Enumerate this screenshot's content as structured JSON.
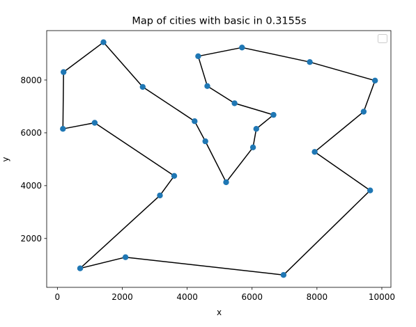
{
  "chart_data": {
    "type": "scatter",
    "title": "Map of cities with basic in 0.3155s",
    "xlabel": "x",
    "ylabel": "y",
    "xlim": [
      -330,
      10280
    ],
    "ylim": [
      150,
      9870
    ],
    "xticks": [
      0,
      2000,
      4000,
      6000,
      8000,
      10000
    ],
    "yticks": [
      2000,
      4000,
      6000,
      8000
    ],
    "grid": false,
    "legend": {
      "placement": "top-right",
      "entries": []
    },
    "colors": {
      "point": "#1f77b4",
      "line": "#000000",
      "axes": "#000000"
    },
    "series": [
      {
        "type": "scatter",
        "points": [
          {
            "x": 1420,
            "y": 9430
          },
          {
            "x": 190,
            "y": 8300
          },
          {
            "x": 170,
            "y": 6150
          },
          {
            "x": 1150,
            "y": 6380
          },
          {
            "x": 3600,
            "y": 4370
          },
          {
            "x": 3160,
            "y": 3630
          },
          {
            "x": 700,
            "y": 870
          },
          {
            "x": 2100,
            "y": 1290
          },
          {
            "x": 6970,
            "y": 620
          },
          {
            "x": 9640,
            "y": 3820
          },
          {
            "x": 7930,
            "y": 5280
          },
          {
            "x": 9440,
            "y": 6800
          },
          {
            "x": 9790,
            "y": 7980
          },
          {
            "x": 7780,
            "y": 8680
          },
          {
            "x": 5690,
            "y": 9230
          },
          {
            "x": 4340,
            "y": 8900
          },
          {
            "x": 4620,
            "y": 7770
          },
          {
            "x": 5460,
            "y": 7120
          },
          {
            "x": 6660,
            "y": 6680
          },
          {
            "x": 6130,
            "y": 6150
          },
          {
            "x": 6030,
            "y": 5450
          },
          {
            "x": 5200,
            "y": 4130
          },
          {
            "x": 4560,
            "y": 5680
          },
          {
            "x": 4230,
            "y": 6440
          },
          {
            "x": 2630,
            "y": 7740
          }
        ]
      },
      {
        "type": "line",
        "closed": true,
        "route": [
          {
            "x": 1420,
            "y": 9430
          },
          {
            "x": 190,
            "y": 8300
          },
          {
            "x": 170,
            "y": 6150
          },
          {
            "x": 1150,
            "y": 6380
          },
          {
            "x": 3600,
            "y": 4370
          },
          {
            "x": 3160,
            "y": 3630
          },
          {
            "x": 700,
            "y": 870
          },
          {
            "x": 2100,
            "y": 1290
          },
          {
            "x": 6970,
            "y": 620
          },
          {
            "x": 9640,
            "y": 3820
          },
          {
            "x": 7930,
            "y": 5280
          },
          {
            "x": 9440,
            "y": 6800
          },
          {
            "x": 9790,
            "y": 7980
          },
          {
            "x": 7780,
            "y": 8680
          },
          {
            "x": 5690,
            "y": 9230
          },
          {
            "x": 4340,
            "y": 8900
          },
          {
            "x": 4620,
            "y": 7770
          },
          {
            "x": 5460,
            "y": 7120
          },
          {
            "x": 6660,
            "y": 6680
          },
          {
            "x": 6130,
            "y": 6150
          },
          {
            "x": 6030,
            "y": 5450
          },
          {
            "x": 5200,
            "y": 4130
          },
          {
            "x": 4560,
            "y": 5680
          },
          {
            "x": 4230,
            "y": 6440
          },
          {
            "x": 2630,
            "y": 7740
          }
        ]
      }
    ]
  }
}
